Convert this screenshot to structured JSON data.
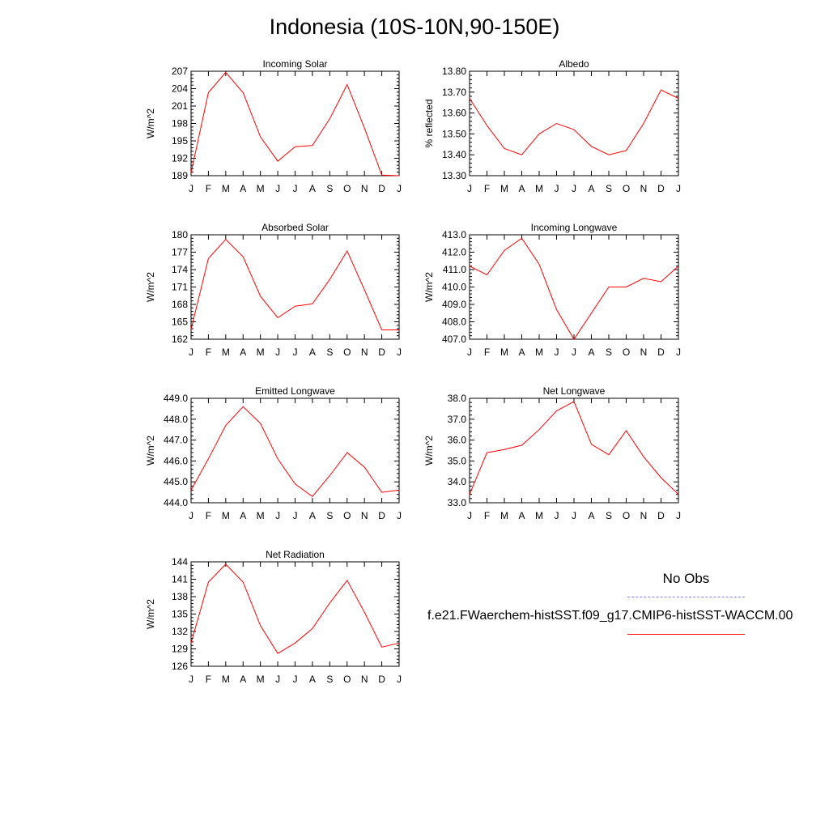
{
  "page": {
    "title": "Indonesia (10S-10N,90-150E)"
  },
  "legend": {
    "no_obs_label": "No Obs",
    "model_label": "f.e21.FWaerchem-histSST.f09_g17.CMIP6-histSST-WACCM.00",
    "obs_color": "#8080ff",
    "model_color": "#ff0000"
  },
  "chart_data": [
    {
      "type": "line",
      "title": "Incoming Solar",
      "ylabel": "W/m^2",
      "x": [
        "J",
        "F",
        "M",
        "A",
        "M",
        "J",
        "J",
        "A",
        "S",
        "O",
        "N",
        "D",
        "J"
      ],
      "ylim": [
        189,
        207
      ],
      "yticks": [
        "207",
        "204",
        "201",
        "198",
        "195",
        "192",
        "189"
      ],
      "series": [
        {
          "values": [
            189.5,
            203.3,
            206.8,
            203.3,
            195.7,
            191.5,
            194.0,
            194.2,
            198.8,
            204.7,
            197.2,
            189.1,
            189.0
          ]
        }
      ]
    },
    {
      "type": "line",
      "title": "Albedo",
      "ylabel": "% reflected",
      "x": [
        "J",
        "F",
        "M",
        "A",
        "M",
        "J",
        "J",
        "A",
        "S",
        "O",
        "N",
        "D",
        "J"
      ],
      "ylim": [
        13.3,
        13.8
      ],
      "yticks": [
        "13.80",
        "13.70",
        "13.60",
        "13.50",
        "13.40",
        "13.30"
      ],
      "series": [
        {
          "values": [
            13.67,
            13.54,
            13.43,
            13.4,
            13.5,
            13.55,
            13.52,
            13.44,
            13.4,
            13.42,
            13.55,
            13.71,
            13.67
          ]
        }
      ]
    },
    {
      "type": "line",
      "title": "Absorbed Solar",
      "ylabel": "W/m^2",
      "x": [
        "J",
        "F",
        "M",
        "A",
        "M",
        "J",
        "J",
        "A",
        "S",
        "O",
        "N",
        "D",
        "J"
      ],
      "ylim": [
        162,
        180
      ],
      "yticks": [
        "180",
        "177",
        "174",
        "171",
        "168",
        "165",
        "162"
      ],
      "series": [
        {
          "values": [
            163.7,
            175.9,
            179.2,
            176.2,
            169.4,
            165.7,
            167.7,
            168.1,
            172.3,
            177.2,
            170.5,
            163.6,
            163.6
          ]
        }
      ]
    },
    {
      "type": "line",
      "title": "Incoming Longwave",
      "ylabel": "W/m^2",
      "x": [
        "J",
        "F",
        "M",
        "A",
        "M",
        "J",
        "J",
        "A",
        "S",
        "O",
        "N",
        "D",
        "J"
      ],
      "ylim": [
        407.0,
        413.0
      ],
      "yticks": [
        "413.0",
        "412.0",
        "411.0",
        "410.0",
        "409.0",
        "408.0",
        "407.0"
      ],
      "series": [
        {
          "values": [
            411.2,
            410.7,
            412.1,
            412.8,
            411.3,
            408.7,
            407.0,
            408.5,
            410.0,
            410.0,
            410.5,
            410.3,
            411.2
          ]
        }
      ]
    },
    {
      "type": "line",
      "title": "Emitted Longwave",
      "ylabel": "W/m^2",
      "x": [
        "J",
        "F",
        "M",
        "A",
        "M",
        "J",
        "J",
        "A",
        "S",
        "O",
        "N",
        "D",
        "J"
      ],
      "ylim": [
        444.0,
        449.0
      ],
      "yticks": [
        "449.0",
        "448.0",
        "447.0",
        "446.0",
        "445.0",
        "444.0"
      ],
      "series": [
        {
          "values": [
            444.6,
            446.1,
            447.7,
            448.6,
            447.8,
            446.1,
            444.9,
            444.3,
            445.3,
            446.4,
            445.7,
            444.5,
            444.6
          ]
        }
      ]
    },
    {
      "type": "line",
      "title": "Net Longwave",
      "ylabel": "W/m^2",
      "x": [
        "J",
        "F",
        "M",
        "A",
        "M",
        "J",
        "J",
        "A",
        "S",
        "O",
        "N",
        "D",
        "J"
      ],
      "ylim": [
        33.0,
        38.0
      ],
      "yticks": [
        "38.0",
        "37.0",
        "36.0",
        "35.0",
        "34.0",
        "33.0"
      ],
      "series": [
        {
          "values": [
            33.4,
            35.4,
            35.55,
            35.75,
            36.5,
            37.4,
            37.85,
            35.8,
            35.3,
            36.45,
            35.2,
            34.2,
            33.4
          ]
        }
      ]
    },
    {
      "type": "line",
      "title": "Net Radiation",
      "ylabel": "W/m^2",
      "x": [
        "J",
        "F",
        "M",
        "A",
        "M",
        "J",
        "J",
        "A",
        "S",
        "O",
        "N",
        "D",
        "J"
      ],
      "ylim": [
        126,
        144
      ],
      "yticks": [
        "144",
        "141",
        "138",
        "135",
        "132",
        "129",
        "126"
      ],
      "series": [
        {
          "values": [
            130.0,
            140.5,
            143.6,
            140.5,
            133.0,
            128.2,
            130.0,
            132.5,
            136.9,
            140.8,
            135.3,
            129.3,
            130.0
          ]
        }
      ]
    }
  ]
}
